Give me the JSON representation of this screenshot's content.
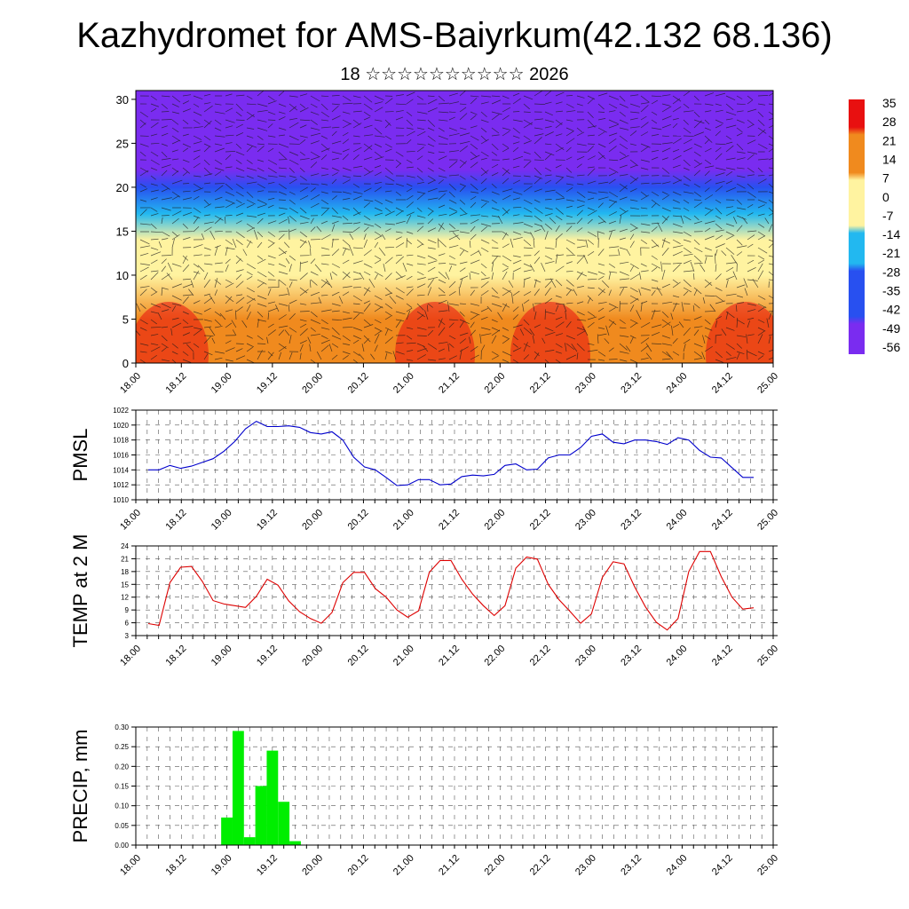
{
  "title": "Kazhydromet for AMS-Baiyrkum(42.132 68.136)",
  "subtitle": "18 ☆☆☆☆☆☆☆☆☆☆ 2026",
  "time_ticks": [
    "18.00",
    "18.12",
    "19.00",
    "19.12",
    "20.00",
    "20.12",
    "21.00",
    "21.12",
    "22.00",
    "22.12",
    "23.00",
    "23.12",
    "24.00",
    "24.12",
    "25.00"
  ],
  "chart_data": [
    {
      "type": "heatmap",
      "title": "",
      "xlabel": "",
      "ylabel": "",
      "y_ticks": [
        0,
        5,
        10,
        15,
        20,
        25,
        30
      ],
      "ylim": [
        0,
        31
      ],
      "colorbar": {
        "ticks": [
          35,
          28,
          21,
          14,
          7,
          0,
          -7,
          -14,
          -21,
          -28,
          -35,
          -42,
          -49,
          -56
        ],
        "range": [
          -63,
          38
        ],
        "colors": {
          "warm": "#e81010",
          "orange": "#f08a1e",
          "yellow": "#fff3a0",
          "cyan": "#22b8f0",
          "blue": "#2850f0",
          "violet": "#7a2cf0",
          "pink": "#f0a0a8"
        }
      },
      "temperature_profile": [
        {
          "height": 0,
          "value": 18
        },
        {
          "height": 5,
          "value": 12
        },
        {
          "height": 10,
          "value": 6
        },
        {
          "height": 14,
          "value": -6
        },
        {
          "height": 17,
          "value": -22
        },
        {
          "height": 20,
          "value": -45
        },
        {
          "height": 22,
          "value": -58
        },
        {
          "height": 25,
          "value": -55
        },
        {
          "height": 31,
          "value": -52
        }
      ],
      "overlay": "wind vectors",
      "grid": false
    },
    {
      "type": "line",
      "ylabel": "PMSL",
      "ylim": [
        1010,
        1022
      ],
      "y_ticks": [
        1010,
        1012,
        1014,
        1016,
        1018,
        1020,
        1022
      ],
      "series": [
        {
          "color": "#0000cc",
          "values": [
            1014.0,
            1014.0,
            1014.6,
            1014.2,
            1014.5,
            1015.0,
            1015.5,
            1016.5,
            1017.8,
            1019.5,
            1020.5,
            1019.8,
            1019.8,
            1019.9,
            1019.7,
            1019.0,
            1018.8,
            1019.1,
            1018.0,
            1015.7,
            1014.4,
            1014.0,
            1013.0,
            1011.9,
            1012.0,
            1012.7,
            1012.7,
            1012.0,
            1012.1,
            1013.1,
            1013.3,
            1013.2,
            1013.4,
            1014.6,
            1014.8,
            1014.0,
            1014.1,
            1015.6,
            1016.0,
            1016.0,
            1017.0,
            1018.5,
            1018.8,
            1017.7,
            1017.5,
            1018.0,
            1018.0,
            1017.8,
            1017.4,
            1018.3,
            1018.0,
            1016.6,
            1015.7,
            1015.6,
            1014.3,
            1013.0,
            1013.0
          ]
        }
      ],
      "grid": true
    },
    {
      "type": "line",
      "ylabel": "TEMP at 2 M",
      "ylim": [
        3,
        24
      ],
      "y_ticks": [
        3,
        6,
        9,
        12,
        15,
        18,
        21,
        24
      ],
      "series": [
        {
          "color": "#dd0000",
          "values": [
            5.8,
            5.4,
            15.4,
            19.0,
            19.2,
            15.7,
            11.2,
            10.4,
            10.0,
            9.6,
            12.2,
            16.2,
            14.8,
            11.1,
            8.6,
            7.0,
            5.9,
            8.4,
            15.4,
            17.8,
            17.8,
            14.0,
            12.0,
            9.0,
            7.3,
            8.8,
            17.8,
            20.6,
            20.6,
            16.2,
            12.7,
            10.0,
            7.7,
            10.0,
            18.8,
            21.4,
            20.9,
            15.0,
            11.4,
            8.7,
            5.9,
            8.1,
            16.6,
            20.3,
            19.8,
            14.4,
            9.7,
            6.1,
            4.3,
            7.0,
            18.0,
            22.7,
            22.7,
            16.8,
            12.0,
            9.2,
            9.5
          ]
        }
      ],
      "grid": true
    },
    {
      "type": "bar",
      "ylabel": "PRECIP, mm",
      "ylim": [
        0,
        0.3
      ],
      "y_ticks": [
        "0.00",
        "0.05",
        "0.10",
        "0.15",
        "0.20",
        "0.25",
        "0.30"
      ],
      "bar_color": "#00ee00",
      "bars": [
        {
          "time": "19.00",
          "value": 0.07
        },
        {
          "time": "19.03",
          "value": 0.29
        },
        {
          "time": "19.06",
          "value": 0.02
        },
        {
          "time": "19.09",
          "value": 0.15
        },
        {
          "time": "19.12",
          "value": 0.24
        },
        {
          "time": "19.15",
          "value": 0.11
        },
        {
          "time": "19.18",
          "value": 0.01
        }
      ],
      "grid": true
    }
  ]
}
